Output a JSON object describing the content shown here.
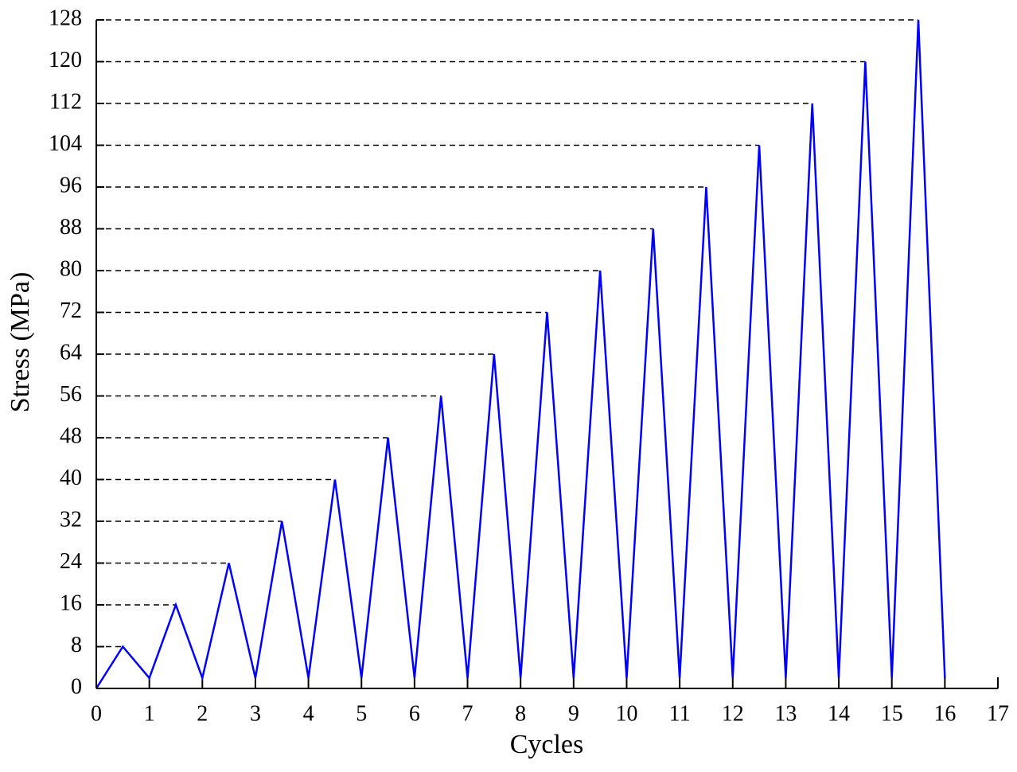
{
  "chart_data": {
    "type": "line",
    "x_label": "Cycles",
    "y_label": "Stress (MPa)",
    "x": [
      0,
      0.5,
      1,
      1.5,
      2,
      2.5,
      3,
      3.5,
      4,
      4.5,
      5,
      5.5,
      6,
      6.5,
      7,
      7.5,
      8,
      8.5,
      9,
      9.5,
      10,
      10.5,
      11,
      11.5,
      12,
      12.5,
      13,
      13.5,
      14,
      14.5,
      15,
      15.5,
      16
    ],
    "series": [
      {
        "name": "Stress",
        "color": "#0000ff",
        "values": [
          0,
          8,
          2,
          16,
          2,
          24,
          2,
          32,
          2,
          40,
          2,
          48,
          2,
          56,
          2,
          64,
          2,
          72,
          2,
          80,
          2,
          88,
          2,
          96,
          2,
          104,
          2,
          112,
          2,
          120,
          2,
          128,
          2
        ]
      }
    ],
    "xlim": [
      0,
      17
    ],
    "xticks": [
      0,
      1,
      2,
      3,
      4,
      5,
      6,
      7,
      8,
      9,
      10,
      11,
      12,
      13,
      14,
      15,
      16,
      17
    ],
    "ylim": [
      0,
      128
    ],
    "yticks": [
      0,
      8,
      16,
      24,
      32,
      40,
      48,
      56,
      64,
      72,
      80,
      88,
      96,
      104,
      112,
      120,
      128
    ],
    "peak_guides": true,
    "legend": false
  }
}
